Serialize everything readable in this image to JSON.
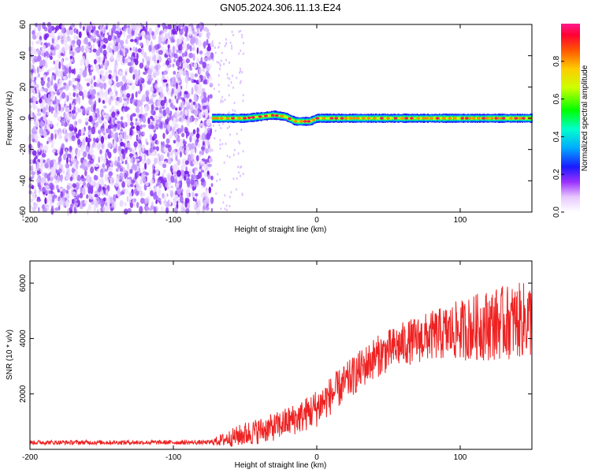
{
  "title": "GN05.2024.306.11.13.E24",
  "chart_data": [
    {
      "type": "heatmap",
      "xlabel": "Height of straight line (km)",
      "ylabel": "Frequency (Hz)",
      "xlim": [
        -200,
        150
      ],
      "ylim": [
        -60,
        60
      ],
      "x_ticks": [
        -200,
        -100,
        0,
        100
      ],
      "x_tick_labels": [
        "-200",
        "-100",
        "0",
        "100"
      ],
      "y_ticks": [
        -60,
        -40,
        -20,
        0,
        20,
        40,
        60
      ],
      "y_tick_labels": [
        "-60",
        "-40",
        "-20",
        "0",
        "20",
        "40",
        "60"
      ],
      "colorbar": {
        "label": "Normalized spectral amplitude",
        "range": [
          0,
          1
        ],
        "ticks": [
          0,
          0.2,
          0.4,
          0.6,
          0.8
        ],
        "tick_labels": [
          "0.0",
          "0.2",
          "0.4",
          "0.6",
          "0.8"
        ],
        "colormap": "rainbow"
      },
      "noise_region_x": [
        -200,
        -73
      ],
      "signal_start_x": -73,
      "signal_track": [
        {
          "x": -73,
          "freq": 0
        },
        {
          "x": -60,
          "freq": 0
        },
        {
          "x": -50,
          "freq": 0
        },
        {
          "x": -40,
          "freq": 1
        },
        {
          "x": -30,
          "freq": 2
        },
        {
          "x": -22,
          "freq": 1
        },
        {
          "x": -15,
          "freq": -2
        },
        {
          "x": -5,
          "freq": -2
        },
        {
          "x": 0,
          "freq": 0
        },
        {
          "x": 20,
          "freq": 0
        },
        {
          "x": 50,
          "freq": 0
        },
        {
          "x": 80,
          "freq": 0
        },
        {
          "x": 110,
          "freq": 0
        },
        {
          "x": 150,
          "freq": 0
        }
      ]
    },
    {
      "type": "line",
      "xlabel": "Height of straight line (km)",
      "ylabel": "SNR (10 * v/v)",
      "xlim": [
        -200,
        150
      ],
      "ylim": [
        0,
        6800
      ],
      "x_ticks": [
        -200,
        -100,
        0,
        100
      ],
      "x_tick_labels": [
        "-200",
        "-100",
        "0",
        "100"
      ],
      "y_ticks": [
        2000,
        4000,
        6000
      ],
      "y_tick_labels": [
        "2000",
        "4000",
        "6000"
      ],
      "series_color": "#ee2222",
      "envelope": [
        {
          "x": -200,
          "mean": 250,
          "spread": 80
        },
        {
          "x": -75,
          "mean": 250,
          "spread": 80
        },
        {
          "x": -65,
          "mean": 350,
          "spread": 250
        },
        {
          "x": -50,
          "mean": 550,
          "spread": 450
        },
        {
          "x": -30,
          "mean": 800,
          "spread": 500
        },
        {
          "x": -10,
          "mean": 1200,
          "spread": 600
        },
        {
          "x": 0,
          "mean": 1500,
          "spread": 700
        },
        {
          "x": 20,
          "mean": 2400,
          "spread": 700
        },
        {
          "x": 40,
          "mean": 3300,
          "spread": 750
        },
        {
          "x": 60,
          "mean": 3800,
          "spread": 800
        },
        {
          "x": 80,
          "mean": 4100,
          "spread": 900
        },
        {
          "x": 100,
          "mean": 4300,
          "spread": 1100
        },
        {
          "x": 120,
          "mean": 4500,
          "spread": 1300
        },
        {
          "x": 150,
          "mean": 4700,
          "spread": 1400
        }
      ]
    }
  ]
}
